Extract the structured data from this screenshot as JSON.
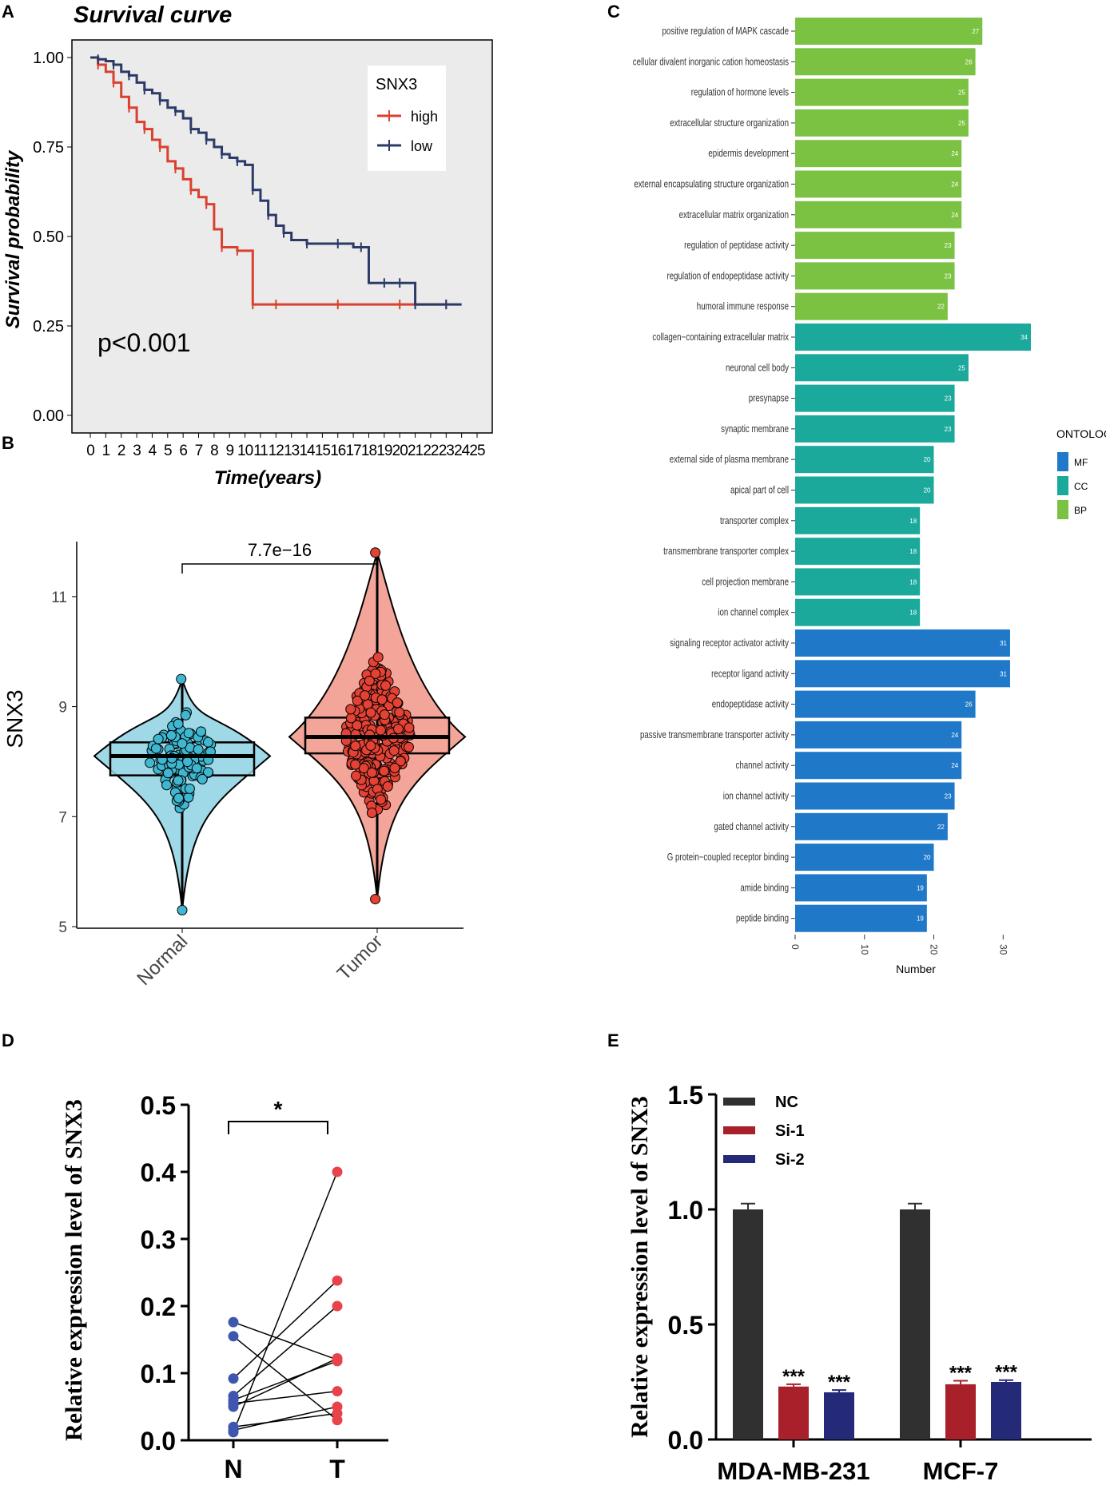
{
  "panel_labels": [
    "A",
    "B",
    "C",
    "D",
    "E"
  ],
  "chart_data": [
    {
      "panel": "A",
      "type": "line",
      "title": "Survival curve",
      "xlabel": "Time(years)",
      "ylabel": "Survival probability",
      "xlim": [
        0,
        25
      ],
      "ylim": [
        0,
        1
      ],
      "xticks": [
        "0",
        "1",
        "2",
        "3",
        "4",
        "5",
        "6",
        "7",
        "8",
        "9",
        "10",
        "11",
        "12",
        "13",
        "14",
        "15",
        "16",
        "17",
        "18",
        "19",
        "20",
        "21",
        "22",
        "23",
        "24",
        "25"
      ],
      "yticks": [
        "0.00",
        "0.25",
        "0.50",
        "0.75",
        "1.00"
      ],
      "annotation": "p<0.001",
      "legend": {
        "title": "SNX3",
        "position": "top-right",
        "entries": [
          "high",
          "low"
        ]
      },
      "series": [
        {
          "name": "high",
          "color": "#d9412e",
          "x": [
            0,
            0.5,
            1,
            1.5,
            2,
            2.5,
            3,
            3.5,
            4,
            4.5,
            5,
            5.5,
            6,
            6.5,
            7,
            7.5,
            8,
            8.5,
            9,
            9.5,
            10,
            10.5,
            11,
            12,
            14,
            16,
            18,
            20,
            20.5,
            21,
            22,
            23
          ],
          "y": [
            1,
            0.98,
            0.96,
            0.93,
            0.89,
            0.86,
            0.82,
            0.8,
            0.77,
            0.75,
            0.71,
            0.69,
            0.66,
            0.63,
            0.61,
            0.59,
            0.52,
            0.47,
            0.47,
            0.46,
            0.46,
            0.31,
            0.31,
            0.31,
            0.31,
            0.31,
            0.31,
            0.31,
            0.31,
            0.31,
            0.31,
            0.31
          ]
        },
        {
          "name": "low",
          "color": "#2b3a67",
          "x": [
            0,
            0.5,
            1,
            1.5,
            2,
            2.5,
            3,
            3.5,
            4,
            4.5,
            5,
            5.5,
            6,
            6.5,
            7,
            7.5,
            8,
            8.5,
            9,
            9.5,
            10,
            10.5,
            11,
            11.5,
            12,
            12.5,
            13,
            14,
            15,
            16,
            17,
            17.5,
            18,
            19,
            19.5,
            20,
            20.5,
            21,
            22,
            23,
            24
          ],
          "y": [
            1,
            0.995,
            0.99,
            0.98,
            0.96,
            0.95,
            0.93,
            0.91,
            0.9,
            0.88,
            0.86,
            0.85,
            0.83,
            0.8,
            0.79,
            0.77,
            0.75,
            0.73,
            0.72,
            0.71,
            0.7,
            0.63,
            0.6,
            0.56,
            0.53,
            0.51,
            0.49,
            0.48,
            0.48,
            0.48,
            0.47,
            0.47,
            0.37,
            0.37,
            0.37,
            0.37,
            0.37,
            0.31,
            0.31,
            0.31,
            0.31
          ]
        }
      ]
    },
    {
      "panel": "B",
      "type": "violin",
      "ylabel": "SNX3",
      "categories": [
        "Normal",
        "Tumor"
      ],
      "ylim": [
        5,
        12
      ],
      "yticks": [
        "5",
        "7",
        "9",
        "11"
      ],
      "significance": "7.7e−16",
      "groups": [
        {
          "name": "Normal",
          "fill": "#9fd8e6",
          "point": "#3fb7d1",
          "min": 5.3,
          "q1": 7.75,
          "median": 8.1,
          "q3": 8.35,
          "max": 9.5
        },
        {
          "name": "Tumor",
          "fill": "#f4a59a",
          "point": "#e34234",
          "min": 5.5,
          "q1": 8.15,
          "median": 8.45,
          "q3": 8.8,
          "max": 11.8
        }
      ]
    },
    {
      "panel": "C",
      "type": "bar",
      "orientation": "horizontal",
      "xlabel": "Number",
      "xticks": [
        "0",
        "10",
        "20",
        "30"
      ],
      "xlim": [
        0,
        34
      ],
      "legend": {
        "title": "ONTOLOGY",
        "position": "right",
        "entries": [
          {
            "name": "MF",
            "color": "#1f78c8"
          },
          {
            "name": "CC",
            "color": "#1ba99c"
          },
          {
            "name": "BP",
            "color": "#7cc242"
          }
        ]
      },
      "categories": [
        "positive regulation of MAPK cascade",
        "cellular divalent inorganic cation homeostasis",
        "regulation of hormone levels",
        "extracellular structure organization",
        "epidermis development",
        "external encapsulating structure organization",
        "extracellular matrix organization",
        "regulation of peptidase activity",
        "regulation of endopeptidase activity",
        "humoral immune response",
        "collagen−containing extracellular matrix",
        "neuronal cell body",
        "presynapse",
        "synaptic membrane",
        "external side of plasma membrane",
        "apical part of cell",
        "transporter complex",
        "transmembrane transporter complex",
        "cell projection membrane",
        "ion channel complex",
        "signaling receptor activator activity",
        "receptor ligand activity",
        "endopeptidase activity",
        "passive transmembrane transporter activity",
        "channel activity",
        "ion channel activity",
        "gated channel activity",
        "G protein−coupled receptor binding",
        "amide binding",
        "peptide binding"
      ],
      "values": [
        27,
        26,
        25,
        25,
        24,
        24,
        24,
        23,
        23,
        22,
        34,
        25,
        23,
        23,
        20,
        20,
        18,
        18,
        18,
        18,
        31,
        31,
        26,
        24,
        24,
        23,
        22,
        20,
        19,
        19
      ],
      "ontology": [
        "BP",
        "BP",
        "BP",
        "BP",
        "BP",
        "BP",
        "BP",
        "BP",
        "BP",
        "BP",
        "CC",
        "CC",
        "CC",
        "CC",
        "CC",
        "CC",
        "CC",
        "CC",
        "CC",
        "CC",
        "MF",
        "MF",
        "MF",
        "MF",
        "MF",
        "MF",
        "MF",
        "MF",
        "MF",
        "MF"
      ]
    },
    {
      "panel": "D",
      "type": "scatter",
      "style": "paired",
      "ylabel": "Relative expression level of SNX3",
      "categories": [
        "N",
        "T"
      ],
      "ylim": [
        0,
        0.5
      ],
      "yticks": [
        "0.0",
        "0.1",
        "0.2",
        "0.3",
        "0.4",
        "0.5"
      ],
      "significance": "*",
      "pairs": [
        {
          "N": 0.176,
          "T": 0.12
        },
        {
          "N": 0.155,
          "T": 0.03
        },
        {
          "N": 0.092,
          "T": 0.238
        },
        {
          "N": 0.066,
          "T": 0.2
        },
        {
          "N": 0.06,
          "T": 0.118
        },
        {
          "N": 0.055,
          "T": 0.073
        },
        {
          "N": 0.05,
          "T": 0.122
        },
        {
          "N": 0.02,
          "T": 0.04
        },
        {
          "N": 0.015,
          "T": 0.05
        },
        {
          "N": 0.012,
          "T": 0.4
        }
      ],
      "colors": {
        "N": "#3f56b0",
        "T": "#e8434a"
      }
    },
    {
      "panel": "E",
      "type": "bar",
      "ylabel": "Relative expression level of SNX3",
      "categories": [
        "MDA-MB-231",
        "MCF-7"
      ],
      "ylim": [
        0,
        1.5
      ],
      "yticks": [
        "0.0",
        "0.5",
        "1.0",
        "1.5"
      ],
      "legend": {
        "position": "top-left"
      },
      "series": [
        {
          "name": "NC",
          "color": "#303030",
          "values": [
            1.0,
            1.0
          ],
          "errors": [
            0.025,
            0.025
          ],
          "stars": [
            "",
            ""
          ]
        },
        {
          "name": "Si-1",
          "color": "#a8202a",
          "values": [
            0.23,
            0.24
          ],
          "errors": [
            0.01,
            0.015
          ],
          "stars": [
            "***",
            "***"
          ]
        },
        {
          "name": "Si-2",
          "color": "#242a78",
          "values": [
            0.205,
            0.25
          ],
          "errors": [
            0.01,
            0.008
          ],
          "stars": [
            "***",
            "***"
          ]
        }
      ]
    }
  ]
}
